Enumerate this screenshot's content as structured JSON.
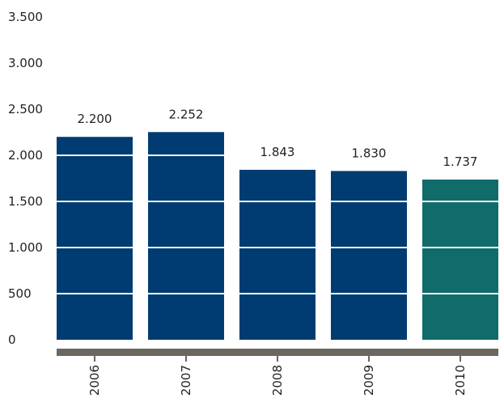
{
  "chart_data": {
    "type": "bar",
    "categories": [
      "2006",
      "2007",
      "2008",
      "2009",
      "2010"
    ],
    "values": [
      2200,
      2252,
      1843,
      1830,
      1737
    ],
    "value_labels": [
      "2.200",
      "2.252",
      "1.843",
      "1.830",
      "1.737"
    ],
    "y_ticks": [
      0,
      500,
      1000,
      1500,
      2000,
      2500,
      3000,
      3500
    ],
    "y_tick_labels": [
      "0",
      "500",
      "1.000",
      "1.500",
      "2.000",
      "2.500",
      "3.000",
      "3.500"
    ],
    "ylim": [
      0,
      3500
    ],
    "title": "",
    "xlabel": "",
    "ylabel": "",
    "grid": "white lines across bars",
    "colors": {
      "bar": "#003c71",
      "highlight_bar": "#106b6b",
      "axis_band": "#6b665e",
      "grid_line": "#ffffff"
    },
    "highlight_index": 4
  }
}
